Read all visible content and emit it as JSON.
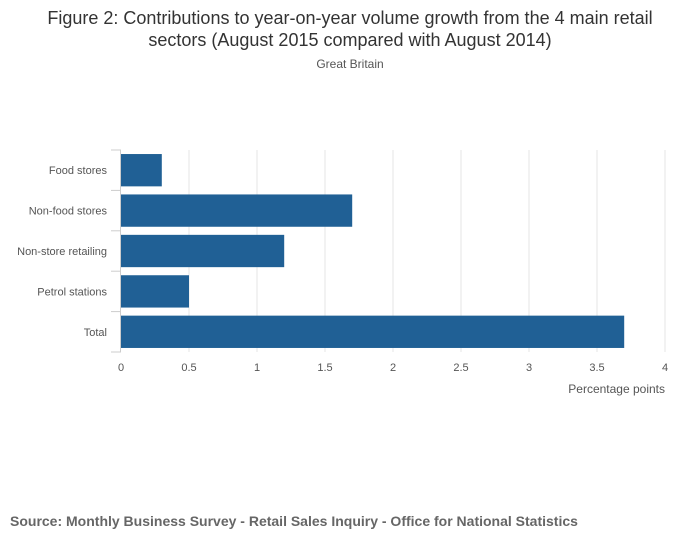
{
  "header": {
    "title": "Figure 2: Contributions to year-on-year volume growth from the 4 main retail sectors (August 2015 compared with August 2014)",
    "subtitle": "Great Britain"
  },
  "footer": {
    "source": "Source: Monthly Business Survey - Retail Sales Inquiry - Office for National Statistics"
  },
  "chart_data": {
    "type": "bar",
    "orientation": "horizontal",
    "title": "Figure 2: Contributions to year-on-year volume growth from the 4 main retail sectors (August 2015 compared with August 2014)",
    "subtitle": "Great Britain",
    "categories": [
      "Food stores",
      "Non-food stores",
      "Non-store retailing",
      "Petrol stations",
      "Total"
    ],
    "values": [
      0.3,
      1.7,
      1.2,
      0.5,
      3.7
    ],
    "xlabel": "Percentage points",
    "ylabel": "",
    "xlim": [
      0,
      4
    ],
    "xticks": [
      0,
      0.5,
      1,
      1.5,
      2,
      2.5,
      3,
      3.5,
      4
    ],
    "xtick_labels": [
      "0",
      "0.5",
      "1",
      "1.5",
      "2",
      "2.5",
      "3",
      "3.5",
      "4"
    ],
    "grid": true,
    "legend": "none",
    "bar_color": "#206095",
    "grid_color": "#e6e6e6",
    "axis_color": "#cccccc"
  }
}
